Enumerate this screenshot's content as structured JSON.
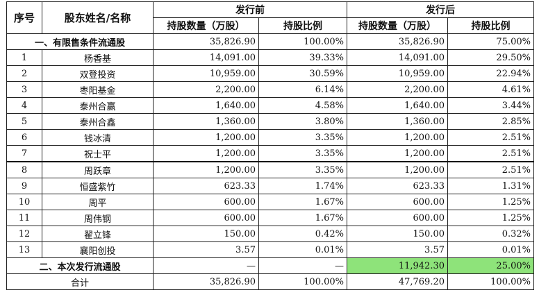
{
  "header": {
    "col_index": "序号",
    "col_name": "股东姓名/名称",
    "group_before": "发行前",
    "group_after": "发行后",
    "sub_shares_before": "持股数量（万股）",
    "sub_ratio_before": "持股比例",
    "sub_shares_after": "持股数量（万股）",
    "sub_ratio_after": "持股比例"
  },
  "section1": {
    "label": "一、有限售条件流通股",
    "shares_before": "35,826.90",
    "ratio_before": "100.00%",
    "shares_after": "35,826.90",
    "ratio_after": "75.00%"
  },
  "rows": [
    {
      "idx": "1",
      "name": "杨香基",
      "shares_before": "14,091.00",
      "ratio_before": "39.33%",
      "shares_after": "14,091.00",
      "ratio_after": "29.50%"
    },
    {
      "idx": "2",
      "name": "双登投资",
      "shares_before": "10,959.00",
      "ratio_before": "30.59%",
      "shares_after": "10,959.00",
      "ratio_after": "22.94%"
    },
    {
      "idx": "3",
      "name": "枣阳基金",
      "shares_before": "2,200.00",
      "ratio_before": "6.14%",
      "shares_after": "2,200.00",
      "ratio_after": "4.61%"
    },
    {
      "idx": "4",
      "name": "泰州合赢",
      "shares_before": "1,640.00",
      "ratio_before": "4.58%",
      "shares_after": "1,640.00",
      "ratio_after": "3.44%"
    },
    {
      "idx": "5",
      "name": "泰州合鑫",
      "shares_before": "1,360.00",
      "ratio_before": "3.80%",
      "shares_after": "1,360.00",
      "ratio_after": "2.85%"
    },
    {
      "idx": "6",
      "name": "钱冰清",
      "shares_before": "1,200.00",
      "ratio_before": "3.35%",
      "shares_after": "1,200.00",
      "ratio_after": "2.51%"
    },
    {
      "idx": "7",
      "name": "祝士平",
      "shares_before": "1,200.00",
      "ratio_before": "3.35%",
      "shares_after": "1,200.00",
      "ratio_after": "2.51%"
    },
    {
      "idx": "8",
      "name": "周跃章",
      "shares_before": "1,200.00",
      "ratio_before": "3.35%",
      "shares_after": "1,200.00",
      "ratio_after": "2.51%"
    },
    {
      "idx": "9",
      "name": "恒盛紫竹",
      "shares_before": "623.33",
      "ratio_before": "1.74%",
      "shares_after": "623.33",
      "ratio_after": "1.31%"
    },
    {
      "idx": "10",
      "name": "周平",
      "shares_before": "600.00",
      "ratio_before": "1.67%",
      "shares_after": "600.00",
      "ratio_after": "1.25%"
    },
    {
      "idx": "11",
      "name": "周伟钢",
      "shares_before": "600.00",
      "ratio_before": "1.67%",
      "shares_after": "600.00",
      "ratio_after": "1.25%"
    },
    {
      "idx": "12",
      "name": "翟立锋",
      "shares_before": "150.00",
      "ratio_before": "0.42%",
      "shares_after": "150.00",
      "ratio_after": "0.32%"
    },
    {
      "idx": "13",
      "name": "襄阳创投",
      "shares_before": "3.57",
      "ratio_before": "0.01%",
      "shares_after": "3.57",
      "ratio_after": "0.01%"
    }
  ],
  "section2": {
    "label": "二、本次发行流通股",
    "shares_before": "—",
    "ratio_before": "—",
    "shares_after": "11,942.30",
    "ratio_after": "25.00%",
    "highlight_color": "#8ee37a"
  },
  "total": {
    "label": "合计",
    "shares_before": "35,826.90",
    "ratio_before": "100.00%",
    "shares_after": "47,769.20",
    "ratio_after": "100.00%"
  }
}
